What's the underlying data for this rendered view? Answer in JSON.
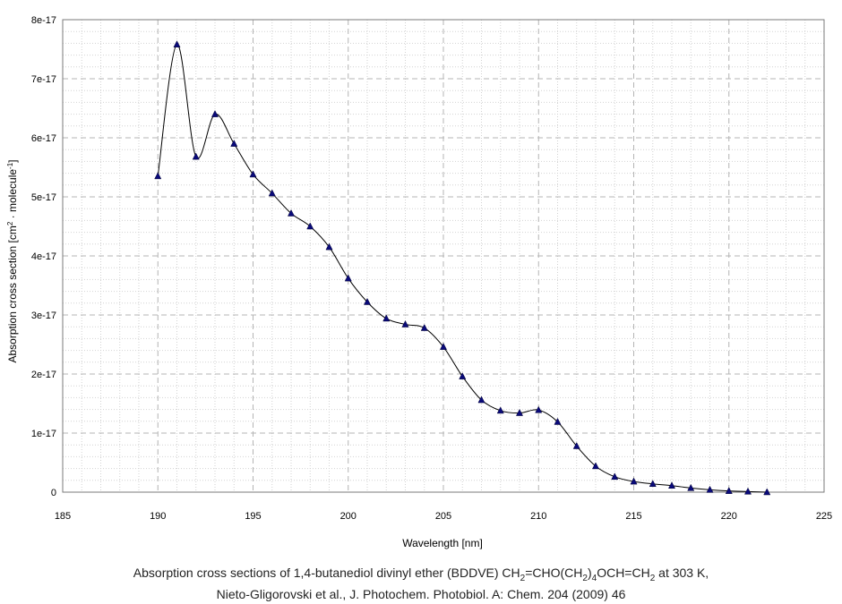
{
  "chart_data": {
    "type": "line",
    "title": "",
    "xlabel": "Wavelength [nm]",
    "ylabel_parts": {
      "a": "Absorption cross section [cm",
      "a_sup": "2",
      "b": " · molecule",
      "b_sup": "-1",
      "c": "]"
    },
    "xlim": [
      185,
      225
    ],
    "ylim": [
      0,
      8e-17
    ],
    "x_ticks": [
      185,
      190,
      195,
      200,
      205,
      210,
      215,
      220,
      225
    ],
    "x_tick_labels": [
      "185",
      "190",
      "195",
      "200",
      "205",
      "210",
      "215",
      "220",
      "225"
    ],
    "y_ticks": [
      0,
      1e-17,
      2e-17,
      3e-17,
      4e-17,
      5e-17,
      6e-17,
      7e-17,
      8e-17
    ],
    "y_tick_labels": [
      "0",
      "1e-17",
      "2e-17",
      "3e-17",
      "4e-17",
      "5e-17",
      "6e-17",
      "7e-17",
      "8e-17"
    ],
    "grid": true,
    "marker": "triangle",
    "series": [
      {
        "x": [
          190,
          191,
          192,
          193,
          194,
          195,
          196,
          197,
          198,
          199,
          200,
          201,
          202,
          203,
          204,
          205,
          206,
          207,
          208,
          209,
          210,
          211,
          212,
          213,
          214,
          215,
          216,
          217,
          218,
          219,
          220,
          221,
          222
        ],
        "y": [
          5.35e-17,
          7.58e-17,
          5.68e-17,
          6.4e-17,
          5.9e-17,
          5.38e-17,
          5.06e-17,
          4.72e-17,
          4.5e-17,
          4.15e-17,
          3.62e-17,
          3.22e-17,
          2.94e-17,
          2.84e-17,
          2.78e-17,
          2.46e-17,
          1.96e-17,
          1.56e-17,
          1.38e-17,
          1.34e-17,
          1.39e-17,
          1.19e-17,
          7.8e-18,
          4.4e-18,
          2.6e-18,
          1.8e-18,
          1.4e-18,
          1.1e-18,
          7e-19,
          4e-19,
          2e-19,
          1e-19,
          0.0
        ]
      }
    ],
    "colors": {
      "marker": "#0a0a7a",
      "line": "#000000",
      "grid_major": "#b4b4b4",
      "grid_minor": "#d2d2d2"
    }
  },
  "caption": {
    "line1": {
      "p1": "Absorption cross sections of 1,4-butanediol divinyl ether (BDDVE) CH",
      "s1": "2",
      "p2": "=CHO(CH",
      "s2": "2",
      "p3": ")",
      "s3": "4",
      "p4": "OCH=CH",
      "s4": "2",
      "p5": " at 303 K,"
    },
    "line2": "Nieto-Gligorovski et al., J. Photochem. Photobiol. A: Chem. 204 (2009) 46"
  }
}
